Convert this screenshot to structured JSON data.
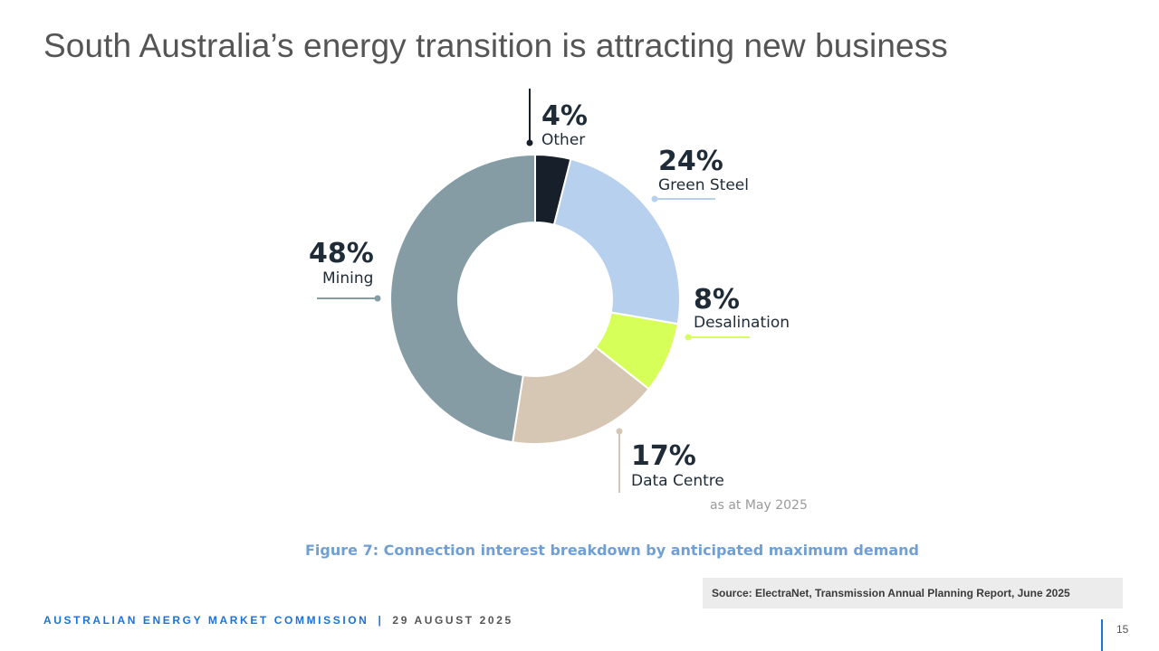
{
  "title": "South Australia’s energy transition is attracting new business",
  "chart_data": {
    "type": "pie",
    "donut": true,
    "categories": [
      "Other",
      "Green Steel",
      "Desalination",
      "Data Centre",
      "Mining"
    ],
    "values": [
      4,
      24,
      8,
      17,
      48
    ],
    "labels": [
      "4%",
      "24%",
      "8%",
      "17%",
      "48%"
    ],
    "colors": [
      "#17202a",
      "#b6d0ee",
      "#d6ff5a",
      "#d6c6b4",
      "#859ca4"
    ],
    "annotation": "as at May 2025"
  },
  "caption": "Figure 7: Connection interest breakdown by anticipated maximum demand",
  "source": "Source:  ElectraNet, Transmission Annual Planning Report, June 2025",
  "footer": {
    "organisation": "AUSTRALIAN ENERGY MARKET COMMISSION",
    "separator": "|",
    "date": "29 AUGUST 2025"
  },
  "page_number": "15"
}
